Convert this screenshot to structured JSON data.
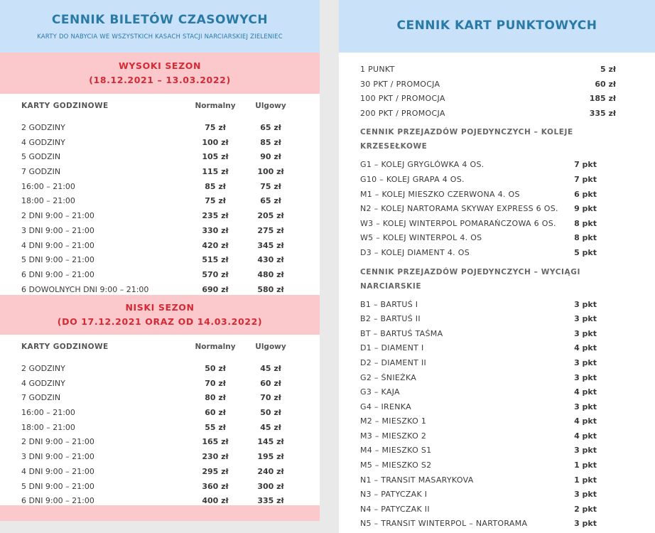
{
  "time_tickets": {
    "title": "CENNIK BILETÓW CZASOWYCH",
    "subtitle": "KARTY DO NABYCIA WE WSZYSTKICH KASACH STACJI NARCIARSKIEJ ZIELENIEC",
    "high_season": {
      "label": "WYSOKI SEZON",
      "dates": "(18.12.2021 – 13.03.2022)",
      "col_name": "KARTY GODZINOWE",
      "col_normal": "Normalny",
      "col_reduced": "Ulgowy",
      "rows": [
        {
          "name": "2 GODZINY",
          "normal": "75 zł",
          "reduced": "65 zł"
        },
        {
          "name": "4 GODZINY",
          "normal": "100 zł",
          "reduced": "85 zł"
        },
        {
          "name": "5 GODZIN",
          "normal": "105 zł",
          "reduced": "90 zł"
        },
        {
          "name": "7 GODZIN",
          "normal": "115 zł",
          "reduced": "100 zł"
        },
        {
          "name": "16:00 – 21:00",
          "normal": "85 zł",
          "reduced": "75 zł"
        },
        {
          "name": "18:00 – 21:00",
          "normal": "75 zł",
          "reduced": "65 zł"
        },
        {
          "name": "2 DNI 9:00 – 21:00",
          "normal": "235 zł",
          "reduced": "205 zł"
        },
        {
          "name": "3 DNI 9:00 – 21:00",
          "normal": "330 zł",
          "reduced": "275 zł"
        },
        {
          "name": "4 DNI 9:00 – 21:00",
          "normal": "420 zł",
          "reduced": "345 zł"
        },
        {
          "name": "5 DNI 9:00 – 21:00",
          "normal": "515 zł",
          "reduced": "430 zł"
        },
        {
          "name": "6 DNI 9:00 – 21:00",
          "normal": "570 zł",
          "reduced": "480 zł"
        },
        {
          "name": "6 DOWOLNYCH DNI 9:00 – 21:00",
          "normal": "690 zł",
          "reduced": "580 zł"
        }
      ]
    },
    "low_season": {
      "label": "NISKI SEZON",
      "dates": "(DO 17.12.2021 ORAZ OD 14.03.2022)",
      "col_name": "KARTY GODZINOWE",
      "col_normal": "Normalny",
      "col_reduced": "Ulgowy",
      "rows": [
        {
          "name": "2 GODZINY",
          "normal": "50 zł",
          "reduced": "45 zł"
        },
        {
          "name": "4 GODZINY",
          "normal": "70 zł",
          "reduced": "60 zł"
        },
        {
          "name": "7 GODZIN",
          "normal": "80 zł",
          "reduced": "70 zł"
        },
        {
          "name": "16:00 – 21:00",
          "normal": "60 zł",
          "reduced": "50 zł"
        },
        {
          "name": "18:00 – 21:00",
          "normal": "55 zł",
          "reduced": "45 zł"
        },
        {
          "name": "2 DNI 9:00 – 21:00",
          "normal": "165 zł",
          "reduced": "145 zł"
        },
        {
          "name": "3 DNI 9:00 – 21:00",
          "normal": "230 zł",
          "reduced": "195 zł"
        },
        {
          "name": "4 DNI 9:00 – 21:00",
          "normal": "295 zł",
          "reduced": "240 zł"
        },
        {
          "name": "5 DNI 9:00 – 21:00",
          "normal": "360 zł",
          "reduced": "300 zł"
        },
        {
          "name": "6 DNI 9:00 – 21:00",
          "normal": "400 zł",
          "reduced": "335 zł"
        }
      ]
    }
  },
  "point_cards": {
    "title": "CENNIK KART PUNKTOWYCH",
    "packages": [
      {
        "name": "1 PUNKT",
        "price": "5 zł"
      },
      {
        "name": "30 PKT / PROMOCJA",
        "price": "60 zł"
      },
      {
        "name": "100 PKT / PROMOCJA",
        "price": "185 zł"
      },
      {
        "name": "200 PKT / PROMOCJA",
        "price": "335 zł"
      }
    ],
    "chairlifts_title": "CENNIK PRZEJAZDÓW POJEDYNCZYCH – KOLEJE KRZESEŁKOWE",
    "chairlifts": [
      {
        "name": "G1 – KOLEJ GRYGLÓWKA 4 OS.",
        "points": "7 pkt"
      },
      {
        "name": "G10 – KOLEJ GRAPA 4 OS.",
        "points": "7 pkt"
      },
      {
        "name": "M1 – KOLEJ MIESZKO CZERWONA 4. OS",
        "points": "6 pkt"
      },
      {
        "name": "N2 – KOLEJ NARTORAMA SKYWAY EXPRESS 6 OS.",
        "points": "9 pkt"
      },
      {
        "name": "W3 – KOLEJ WINTERPOL POMARAŃCZOWA 6 OS.",
        "points": "8 pkt"
      },
      {
        "name": "W5 – KOLEJ WINTERPOL 4. OS",
        "points": "8 pkt"
      },
      {
        "name": "D3 – KOLEJ DIAMENT 4. OS",
        "points": "5 pkt"
      }
    ],
    "draglifts_title": "CENNIK PRZEJAZDÓW POJEDYNCZYCH – WYCIĄGI NARCIARSKIE",
    "draglifts": [
      {
        "name": "B1 – BARTUŚ I",
        "points": "3 pkt"
      },
      {
        "name": "B2 – BARTUŚ II",
        "points": "3 pkt"
      },
      {
        "name": "BT – BARTUŚ TAŚMA",
        "points": "3 pkt"
      },
      {
        "name": "D1 – DIAMENT I",
        "points": "4 pkt"
      },
      {
        "name": "D2 – DIAMENT II",
        "points": "3 pkt"
      },
      {
        "name": "G2 – ŚNIEŻKA",
        "points": "3 pkt"
      },
      {
        "name": "G3 – KAJA",
        "points": "4 pkt"
      },
      {
        "name": "G4 – IRENKA",
        "points": "3 pkt"
      },
      {
        "name": "M2 – MIESZKO 1",
        "points": "4 pkt"
      },
      {
        "name": "M3 – MIESZKO 2",
        "points": "4 pkt"
      },
      {
        "name": "M4 – MIESZKO S1",
        "points": "3 pkt"
      },
      {
        "name": "M5 – MIESZKO S2",
        "points": "1 pkt"
      },
      {
        "name": "N1 – TRANSIT MASARYKOVA",
        "points": "1 pkt"
      },
      {
        "name": "N3 – PATYCZAK I",
        "points": "3 pkt"
      },
      {
        "name": "N4 – PATYCZAK II",
        "points": "2 pkt"
      },
      {
        "name": "N5 – TRANSIT WINTERPOL – NARTORAMA",
        "points": "3 pkt"
      }
    ]
  }
}
